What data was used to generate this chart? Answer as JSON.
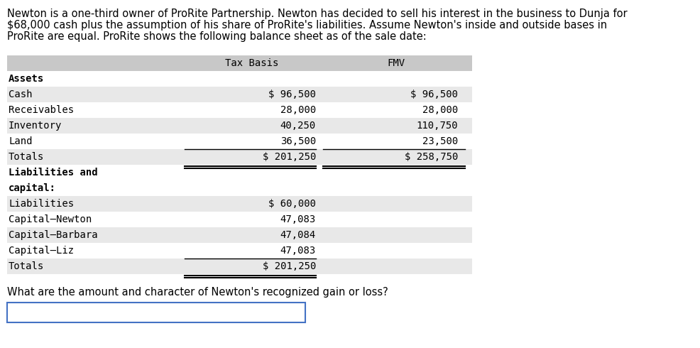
{
  "intro_text": "Newton is a one-third owner of ProRite Partnership. Newton has decided to sell his interest in the business to Dunja for\n$68,000 cash plus the assumption of his share of ProRite's liabilities. Assume Newton's inside and outside bases in\nProRite are equal. ProRite shows the following balance sheet as of the sale date:",
  "header_col2": "Tax Basis",
  "header_col3": "FMV",
  "section1_header": "Assets",
  "assets": [
    {
      "label": "Cash",
      "tax": "$ 96,500",
      "fmv": "$ 96,500"
    },
    {
      "label": "Receivables",
      "tax": "28,000",
      "fmv": "28,000"
    },
    {
      "label": "Inventory",
      "tax": "40,250",
      "fmv": "110,750"
    },
    {
      "label": "Land",
      "tax": "36,500",
      "fmv": "23,500"
    }
  ],
  "totals_row": {
    "label": "Totals",
    "tax": "$ 201,250",
    "fmv": "$ 258,750"
  },
  "section2_header_line1": "Liabilities and",
  "section2_header_line2": "capital:",
  "liabilities": [
    {
      "label": "Liabilities",
      "tax": "$ 60,000",
      "fmv": ""
    },
    {
      "label": "Capital–Newton",
      "tax": "47,083",
      "fmv": ""
    },
    {
      "label": "Capital–Barbara",
      "tax": "47,084",
      "fmv": ""
    },
    {
      "label": "Capital–Liz",
      "tax": "47,083",
      "fmv": ""
    }
  ],
  "totals_row2": {
    "label": "Totals",
    "tax": "$ 201,250",
    "fmv": ""
  },
  "question": "What are the amount and character of Newton's recognized gain or loss?",
  "bg_color": "#ffffff",
  "table_header_bg": "#c8c8c8",
  "table_row_bg_light": "#e8e8e8",
  "table_row_bg_white": "#ffffff",
  "answer_box_color": "#4472C4",
  "intro_fontsize": 10.5,
  "table_fontsize": 10.0,
  "question_fontsize": 10.5
}
